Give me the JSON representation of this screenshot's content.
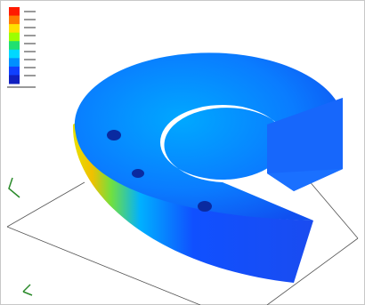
{
  "colorbar": {
    "colors": [
      "#ff1a00",
      "#ff7a00",
      "#ffe000",
      "#9cff00",
      "#20e070",
      "#00d8ff",
      "#0090ff",
      "#1040ff",
      "#1020c0"
    ]
  }
}
